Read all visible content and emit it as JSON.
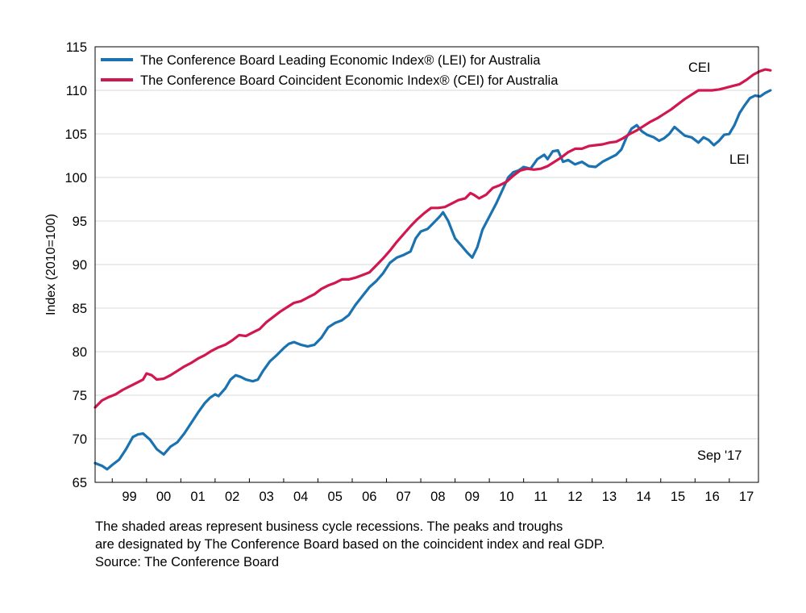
{
  "chart_data": {
    "type": "line",
    "ylabel": "Index (2010=100)",
    "ylim": [
      65,
      115
    ],
    "yticks": [
      65,
      70,
      75,
      80,
      85,
      90,
      95,
      100,
      105,
      110,
      115
    ],
    "xlim": [
      1998.5,
      2017.85
    ],
    "xticks": [
      {
        "label": "99",
        "x": 1999.0
      },
      {
        "label": "00",
        "x": 2000.0
      },
      {
        "label": "01",
        "x": 2001.0
      },
      {
        "label": "02",
        "x": 2002.0
      },
      {
        "label": "03",
        "x": 2003.0
      },
      {
        "label": "04",
        "x": 2004.0
      },
      {
        "label": "05",
        "x": 2005.0
      },
      {
        "label": "06",
        "x": 2006.0
      },
      {
        "label": "07",
        "x": 2007.0
      },
      {
        "label": "08",
        "x": 2008.0
      },
      {
        "label": "09",
        "x": 2009.0
      },
      {
        "label": "10",
        "x": 2010.0
      },
      {
        "label": "11",
        "x": 2011.0
      },
      {
        "label": "12",
        "x": 2012.0
      },
      {
        "label": "13",
        "x": 2013.0
      },
      {
        "label": "14",
        "x": 2014.0
      },
      {
        "label": "15",
        "x": 2015.0
      },
      {
        "label": "16",
        "x": 2016.0
      },
      {
        "label": "17",
        "x": 2017.0
      }
    ],
    "grid": true,
    "legend_position": "top-left",
    "series": [
      {
        "name": "The Conference Board Leading Economic Index® (LEI) for Australia",
        "short_label": "LEI",
        "color": "#1a72b0",
        "points": [
          [
            1998.5,
            67.2
          ],
          [
            1998.7,
            66.9
          ],
          [
            1998.85,
            66.5
          ],
          [
            1999.0,
            67.0
          ],
          [
            1999.2,
            67.6
          ],
          [
            1999.4,
            68.8
          ],
          [
            1999.6,
            70.2
          ],
          [
            1999.75,
            70.5
          ],
          [
            1999.9,
            70.6
          ],
          [
            2000.1,
            69.9
          ],
          [
            2000.3,
            68.8
          ],
          [
            2000.5,
            68.2
          ],
          [
            2000.7,
            69.1
          ],
          [
            2000.9,
            69.6
          ],
          [
            2001.1,
            70.6
          ],
          [
            2001.3,
            71.8
          ],
          [
            2001.5,
            73.0
          ],
          [
            2001.7,
            74.1
          ],
          [
            2001.85,
            74.7
          ],
          [
            2002.0,
            75.1
          ],
          [
            2002.1,
            74.9
          ],
          [
            2002.3,
            75.8
          ],
          [
            2002.45,
            76.8
          ],
          [
            2002.6,
            77.3
          ],
          [
            2002.75,
            77.1
          ],
          [
            2002.9,
            76.8
          ],
          [
            2003.1,
            76.6
          ],
          [
            2003.25,
            76.8
          ],
          [
            2003.4,
            77.8
          ],
          [
            2003.6,
            78.9
          ],
          [
            2003.8,
            79.6
          ],
          [
            2004.0,
            80.4
          ],
          [
            2004.15,
            80.9
          ],
          [
            2004.3,
            81.1
          ],
          [
            2004.5,
            80.8
          ],
          [
            2004.7,
            80.6
          ],
          [
            2004.9,
            80.8
          ],
          [
            2005.1,
            81.6
          ],
          [
            2005.3,
            82.8
          ],
          [
            2005.5,
            83.3
          ],
          [
            2005.7,
            83.6
          ],
          [
            2005.9,
            84.2
          ],
          [
            2006.1,
            85.4
          ],
          [
            2006.3,
            86.4
          ],
          [
            2006.5,
            87.4
          ],
          [
            2006.7,
            88.1
          ],
          [
            2006.9,
            89.0
          ],
          [
            2007.1,
            90.2
          ],
          [
            2007.3,
            90.8
          ],
          [
            2007.5,
            91.1
          ],
          [
            2007.7,
            91.5
          ],
          [
            2007.85,
            93.0
          ],
          [
            2008.0,
            93.8
          ],
          [
            2008.2,
            94.1
          ],
          [
            2008.4,
            94.9
          ],
          [
            2008.55,
            95.5
          ],
          [
            2008.65,
            96.0
          ],
          [
            2008.8,
            95.0
          ],
          [
            2009.0,
            93.0
          ],
          [
            2009.2,
            92.1
          ],
          [
            2009.35,
            91.4
          ],
          [
            2009.5,
            90.8
          ],
          [
            2009.65,
            92.0
          ],
          [
            2009.8,
            94.0
          ],
          [
            2010.0,
            95.5
          ],
          [
            2010.2,
            97.0
          ],
          [
            2010.4,
            98.7
          ],
          [
            2010.55,
            100.0
          ],
          [
            2010.7,
            100.6
          ],
          [
            2010.85,
            100.8
          ],
          [
            2011.0,
            101.2
          ],
          [
            2011.2,
            101.0
          ],
          [
            2011.4,
            102.1
          ],
          [
            2011.6,
            102.6
          ],
          [
            2011.7,
            102.1
          ],
          [
            2011.85,
            103.0
          ],
          [
            2012.0,
            103.1
          ],
          [
            2012.15,
            101.8
          ],
          [
            2012.3,
            102.0
          ],
          [
            2012.5,
            101.5
          ],
          [
            2012.7,
            101.8
          ],
          [
            2012.9,
            101.3
          ],
          [
            2013.1,
            101.2
          ],
          [
            2013.3,
            101.8
          ],
          [
            2013.5,
            102.2
          ],
          [
            2013.7,
            102.6
          ],
          [
            2013.85,
            103.2
          ],
          [
            2014.0,
            104.6
          ],
          [
            2014.15,
            105.6
          ],
          [
            2014.3,
            106.0
          ],
          [
            2014.45,
            105.3
          ],
          [
            2014.6,
            104.9
          ],
          [
            2014.8,
            104.6
          ],
          [
            2014.95,
            104.2
          ],
          [
            2015.1,
            104.5
          ],
          [
            2015.25,
            105.0
          ],
          [
            2015.4,
            105.8
          ],
          [
            2015.55,
            105.3
          ],
          [
            2015.7,
            104.8
          ],
          [
            2015.9,
            104.6
          ],
          [
            2016.1,
            104.0
          ],
          [
            2016.25,
            104.6
          ],
          [
            2016.4,
            104.3
          ],
          [
            2016.55,
            103.7
          ],
          [
            2016.7,
            104.2
          ],
          [
            2016.85,
            104.9
          ],
          [
            2017.0,
            105.0
          ],
          [
            2017.15,
            106.0
          ],
          [
            2017.3,
            107.4
          ],
          [
            2017.45,
            108.3
          ],
          [
            2017.6,
            109.1
          ],
          [
            2017.75,
            109.4
          ],
          [
            2017.9,
            109.3
          ],
          [
            2018.05,
            109.7
          ],
          [
            2018.2,
            110.0
          ]
        ]
      },
      {
        "name": "The Conference Board Coincident Economic Index® (CEI) for Australia",
        "short_label": "CEI",
        "color": "#d0174f",
        "points": [
          [
            1998.5,
            73.6
          ],
          [
            1998.7,
            74.4
          ],
          [
            1998.9,
            74.8
          ],
          [
            1999.1,
            75.1
          ],
          [
            1999.3,
            75.6
          ],
          [
            1999.5,
            76.0
          ],
          [
            1999.7,
            76.4
          ],
          [
            1999.9,
            76.8
          ],
          [
            2000.0,
            77.5
          ],
          [
            2000.15,
            77.3
          ],
          [
            2000.3,
            76.8
          ],
          [
            2000.5,
            76.9
          ],
          [
            2000.7,
            77.3
          ],
          [
            2000.9,
            77.8
          ],
          [
            2001.1,
            78.3
          ],
          [
            2001.3,
            78.7
          ],
          [
            2001.5,
            79.2
          ],
          [
            2001.7,
            79.6
          ],
          [
            2001.9,
            80.1
          ],
          [
            2002.1,
            80.5
          ],
          [
            2002.3,
            80.8
          ],
          [
            2002.5,
            81.3
          ],
          [
            2002.7,
            81.9
          ],
          [
            2002.9,
            81.8
          ],
          [
            2003.1,
            82.2
          ],
          [
            2003.3,
            82.6
          ],
          [
            2003.5,
            83.4
          ],
          [
            2003.7,
            84.0
          ],
          [
            2003.9,
            84.6
          ],
          [
            2004.1,
            85.1
          ],
          [
            2004.3,
            85.6
          ],
          [
            2004.5,
            85.8
          ],
          [
            2004.7,
            86.2
          ],
          [
            2004.9,
            86.6
          ],
          [
            2005.1,
            87.2
          ],
          [
            2005.3,
            87.6
          ],
          [
            2005.5,
            87.9
          ],
          [
            2005.7,
            88.3
          ],
          [
            2005.9,
            88.3
          ],
          [
            2006.1,
            88.5
          ],
          [
            2006.3,
            88.8
          ],
          [
            2006.5,
            89.1
          ],
          [
            2006.7,
            89.9
          ],
          [
            2006.9,
            90.7
          ],
          [
            2007.1,
            91.6
          ],
          [
            2007.3,
            92.6
          ],
          [
            2007.5,
            93.5
          ],
          [
            2007.7,
            94.4
          ],
          [
            2007.9,
            95.2
          ],
          [
            2008.1,
            95.9
          ],
          [
            2008.3,
            96.5
          ],
          [
            2008.5,
            96.5
          ],
          [
            2008.7,
            96.6
          ],
          [
            2008.9,
            97.0
          ],
          [
            2009.1,
            97.4
          ],
          [
            2009.3,
            97.6
          ],
          [
            2009.45,
            98.2
          ],
          [
            2009.55,
            98.0
          ],
          [
            2009.7,
            97.6
          ],
          [
            2009.9,
            98.0
          ],
          [
            2010.1,
            98.8
          ],
          [
            2010.3,
            99.1
          ],
          [
            2010.5,
            99.5
          ],
          [
            2010.7,
            100.2
          ],
          [
            2010.9,
            100.8
          ],
          [
            2011.1,
            101.0
          ],
          [
            2011.3,
            100.9
          ],
          [
            2011.5,
            101.0
          ],
          [
            2011.7,
            101.3
          ],
          [
            2011.9,
            101.8
          ],
          [
            2012.1,
            102.3
          ],
          [
            2012.3,
            102.9
          ],
          [
            2012.5,
            103.3
          ],
          [
            2012.7,
            103.3
          ],
          [
            2012.9,
            103.6
          ],
          [
            2013.1,
            103.7
          ],
          [
            2013.3,
            103.8
          ],
          [
            2013.5,
            104.0
          ],
          [
            2013.7,
            104.1
          ],
          [
            2013.9,
            104.5
          ],
          [
            2014.1,
            105.0
          ],
          [
            2014.3,
            105.4
          ],
          [
            2014.5,
            105.9
          ],
          [
            2014.7,
            106.4
          ],
          [
            2014.9,
            106.8
          ],
          [
            2015.1,
            107.3
          ],
          [
            2015.3,
            107.8
          ],
          [
            2015.5,
            108.4
          ],
          [
            2015.7,
            109.0
          ],
          [
            2015.9,
            109.5
          ],
          [
            2016.1,
            110.0
          ],
          [
            2016.3,
            110.0
          ],
          [
            2016.5,
            110.0
          ],
          [
            2016.7,
            110.1
          ],
          [
            2016.9,
            110.3
          ],
          [
            2017.1,
            110.5
          ],
          [
            2017.3,
            110.7
          ],
          [
            2017.5,
            111.2
          ],
          [
            2017.7,
            111.8
          ],
          [
            2017.9,
            112.2
          ],
          [
            2018.05,
            112.4
          ],
          [
            2018.2,
            112.3
          ]
        ]
      }
    ],
    "annotations": {
      "cei_label": "CEI",
      "lei_label": "LEI",
      "date_label": "Sep '17"
    }
  },
  "footnote": {
    "line1": "The shaded areas represent business cycle recessions. The peaks and troughs",
    "line2": "are designated by The Conference Board based on the coincident index and real GDP.",
    "line3": "Source: The Conference Board"
  }
}
